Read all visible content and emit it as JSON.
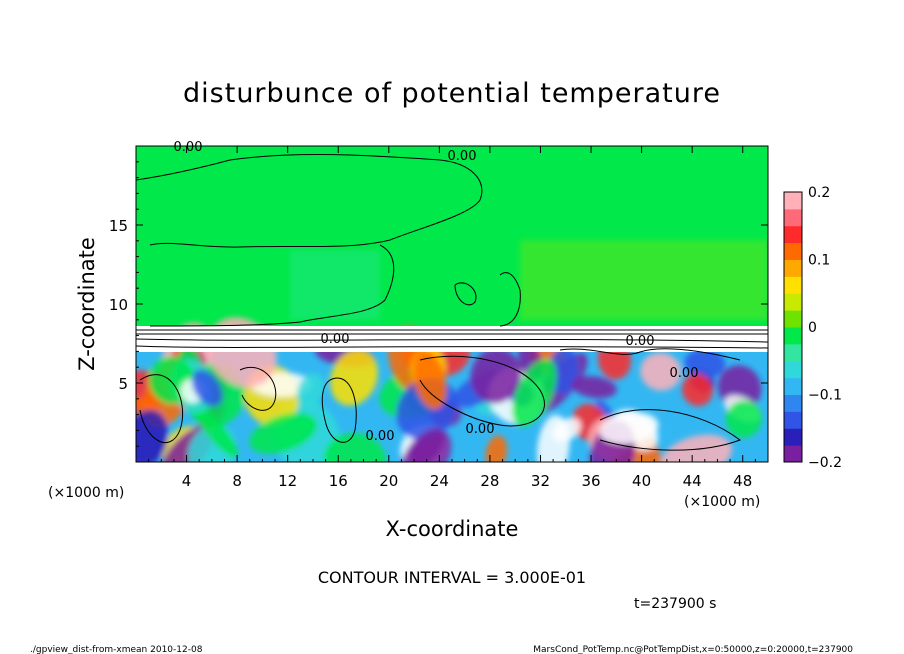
{
  "chart_data": {
    "type": "heatmap",
    "title": "disturbunce of potential temperature",
    "xlabel": "X-coordinate",
    "ylabel": "Z-coordinate",
    "x_unit_left": "(×1000 m)",
    "x_unit_right": "(×1000 m)",
    "xlim": [
      0,
      50
    ],
    "ylim": [
      0,
      20
    ],
    "xticks": [
      4,
      8,
      12,
      16,
      20,
      24,
      28,
      32,
      36,
      40,
      44,
      48
    ],
    "yticks": [
      5,
      10,
      15
    ],
    "colorbar": {
      "vmin": -0.2,
      "vmax": 0.2,
      "labels": [
        {
          "value": 0.2,
          "text": "0.2"
        },
        {
          "value": 0.1,
          "text": "0.1"
        },
        {
          "value": 0,
          "text": "0"
        },
        {
          "value": -0.1,
          "text": "−0.1"
        },
        {
          "value": -0.2,
          "text": "−0.2"
        }
      ],
      "colors": [
        "#7a1fa0",
        "#2a1fb8",
        "#2f54e6",
        "#2f86ef",
        "#33b7f2",
        "#2fd9d9",
        "#33e6a0",
        "#00e84a",
        "#6ee300",
        "#c8ea00",
        "#ffe000",
        "#ffa800",
        "#ff6a00",
        "#ff2a2a",
        "#ff6a78",
        "#ffb0b8"
      ]
    },
    "contour_labels": [
      "0.00",
      "0.00",
      "0.00",
      "0.00",
      "0.00",
      "0.00",
      "0.00"
    ],
    "contour_interval_text": "CONTOUR INTERVAL = 3.000E-01",
    "time_text": "t=237900 s"
  },
  "footer": {
    "left": "./gpview_dist-from-xmean  2010-12-08",
    "right": "MarsCond_PotTemp.nc@PotTempDist,x=0:50000,z=0:20000,t=237900"
  }
}
